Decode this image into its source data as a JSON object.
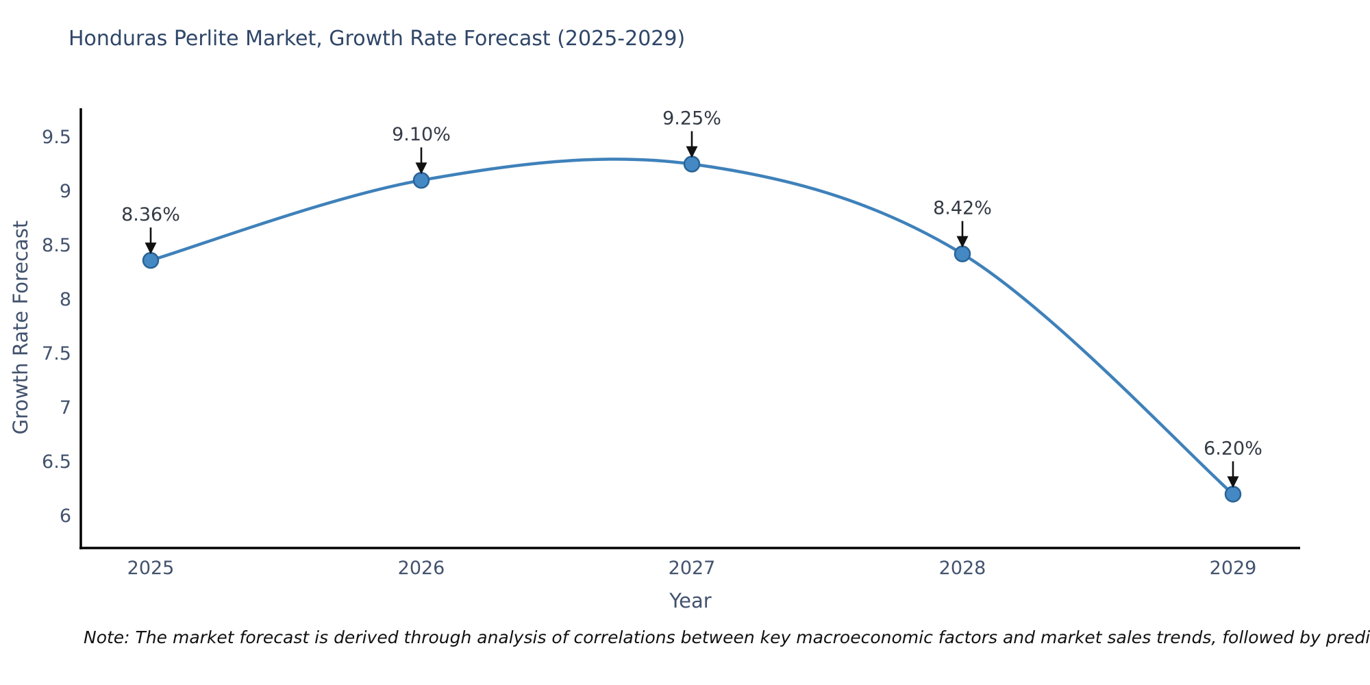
{
  "title": "Honduras Perlite Market, Growth Rate Forecast (2025-2029)",
  "note": "Note: The market forecast is derived through analysis of correlations between key macroeconomic factors and market sales trends, followed by predictive modeling to project future sales",
  "chart_data": {
    "type": "line",
    "title": "Honduras Perlite Market, Growth Rate Forecast (2025-2029)",
    "xlabel": "Year",
    "ylabel": "Growth Rate Forecast",
    "categories": [
      "2025",
      "2026",
      "2027",
      "2028",
      "2029"
    ],
    "values": [
      8.36,
      9.1,
      9.25,
      8.42,
      6.2
    ],
    "point_labels": [
      "8.36%",
      "9.10%",
      "9.25%",
      "8.42%",
      "6.20%"
    ],
    "yticks": [
      6,
      6.5,
      7,
      7.5,
      8,
      8.5,
      9,
      9.5
    ],
    "ylim": [
      5.7,
      9.77
    ],
    "grid": false,
    "legend": false,
    "smooth": true,
    "colors": {
      "line": "#3f81ba",
      "marker_fill": "#4489c4",
      "marker_edge": "#2a6396",
      "axis": "#000000",
      "arrow": "#111111"
    }
  }
}
